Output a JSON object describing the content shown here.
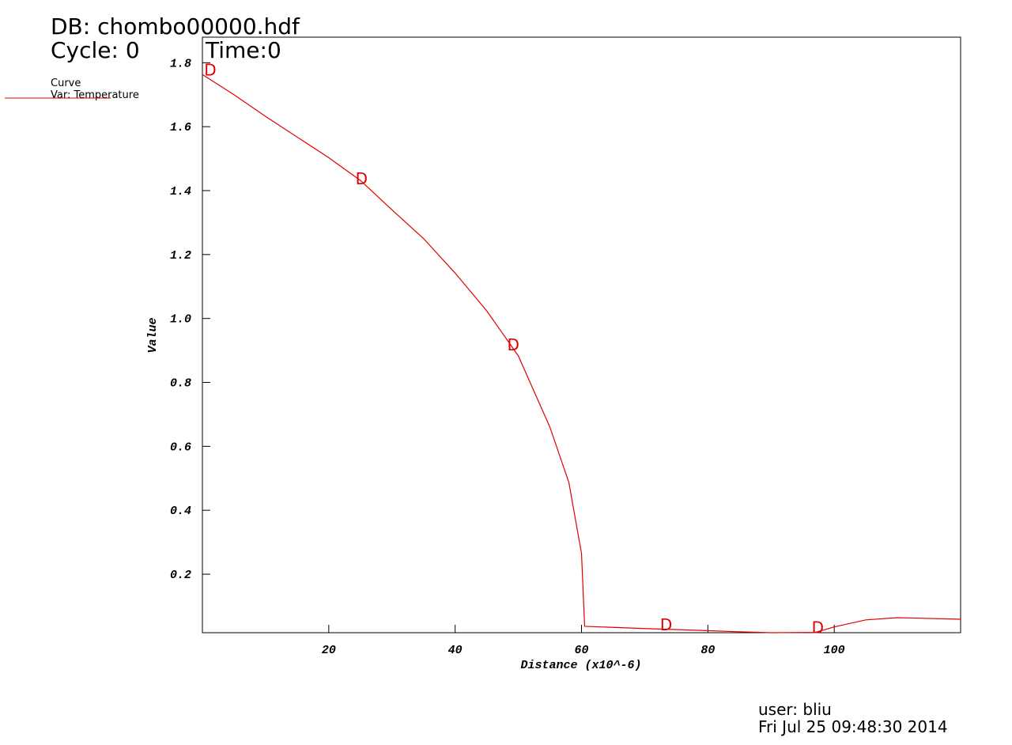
{
  "chart_data": {
    "type": "line",
    "title": "DB: chombo00000.hdf",
    "annotations": [
      "Cycle: 0",
      "Time:0",
      "user: bliu",
      "Fri Jul 25 09:48:30 2014"
    ],
    "legend_title": "Curve",
    "x_label": "Distance (x10^-6)",
    "y_label": "Value",
    "x": [
      0,
      5,
      10,
      20,
      25,
      30,
      35,
      40,
      45,
      50,
      55,
      58,
      60,
      60.5,
      70,
      85,
      90,
      97,
      100,
      105,
      110,
      120
    ],
    "series": [
      {
        "name": "Var: Temperature",
        "color": "#e00000",
        "values": [
          1.763,
          1.7,
          1.632,
          1.503,
          1.432,
          1.34,
          1.25,
          1.142,
          1.024,
          0.883,
          0.66,
          0.487,
          0.265,
          0.037,
          0.03,
          0.02,
          0.017,
          0.018,
          0.035,
          0.057,
          0.064,
          0.059
        ]
      }
    ],
    "markers": {
      "label": "D",
      "color": "#e00000",
      "x": [
        1.25,
        25.2,
        49.2,
        73.4,
        97.4
      ],
      "y": [
        1.78,
        1.44,
        0.92,
        0.044,
        0.035
      ]
    },
    "xlim": [
      0,
      120
    ],
    "ylim": [
      0.017,
      1.88
    ],
    "xticks": [
      20,
      40,
      60,
      80,
      100
    ],
    "yticks": [
      0.2,
      0.4,
      0.6,
      0.8,
      {
        "value": 1,
        "label": "1.0"
      },
      1.2,
      1.4,
      1.6,
      1.8
    ]
  }
}
